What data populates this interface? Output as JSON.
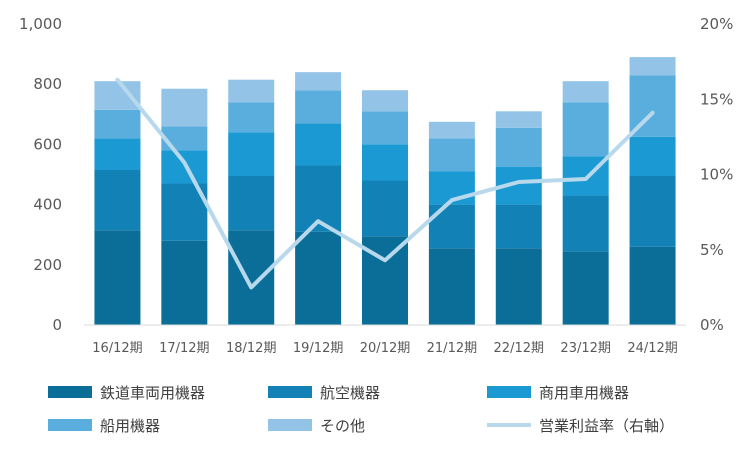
{
  "chart_data": {
    "type": "bar",
    "stacked": true,
    "categories": [
      "16/12期",
      "17/12期",
      "18/12期",
      "19/12期",
      "20/12期",
      "21/12期",
      "22/12期",
      "23/12期",
      "24/12期"
    ],
    "series": [
      {
        "name": "鉄道車両用機器",
        "color": "#0b6e99",
        "values": [
          315,
          280,
          315,
          310,
          295,
          255,
          255,
          245,
          260
        ]
      },
      {
        "name": "航空機器",
        "color": "#1282b6",
        "values": [
          200,
          190,
          180,
          220,
          185,
          145,
          145,
          185,
          235
        ]
      },
      {
        "name": "商用車用機器",
        "color": "#1b99d3",
        "values": [
          105,
          110,
          145,
          140,
          120,
          110,
          125,
          130,
          130
        ]
      },
      {
        "name": "船用機器",
        "color": "#5aaede",
        "values": [
          95,
          80,
          100,
          110,
          110,
          110,
          130,
          180,
          205
        ]
      },
      {
        "name": "その他",
        "color": "#93c4e8",
        "values": [
          95,
          125,
          75,
          60,
          70,
          55,
          55,
          70,
          60
        ]
      }
    ],
    "line": {
      "name": "営業利益率（右軸）",
      "color": "#b8d8ec",
      "values": [
        16.3,
        10.8,
        2.5,
        6.9,
        4.3,
        8.3,
        9.5,
        9.7,
        14.1
      ]
    },
    "ylim": [
      0,
      1000
    ],
    "yticks": [
      "0",
      "200",
      "400",
      "600",
      "800",
      "1,000"
    ],
    "y2lim": [
      0,
      20
    ],
    "y2ticks": [
      "0%",
      "5%",
      "10%",
      "15%",
      "20%"
    ],
    "grid": false,
    "legend_position": "bottom"
  }
}
